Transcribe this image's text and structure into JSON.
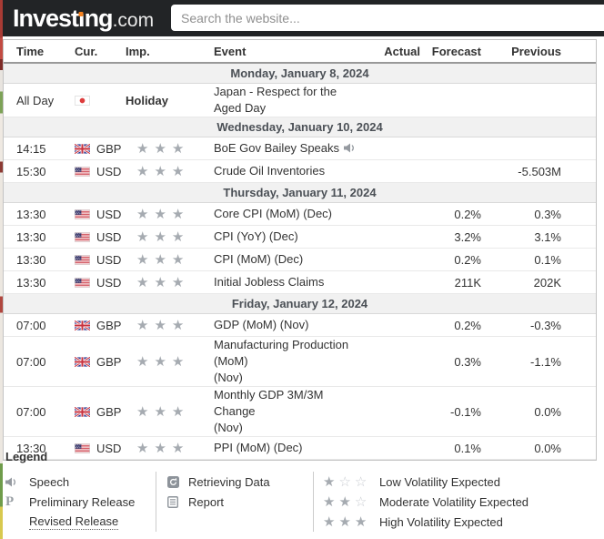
{
  "header": {
    "logo": {
      "before": "Invest",
      "i_char": "ı",
      "after": "ng",
      "suffix": ".com"
    },
    "search_placeholder": "Search the website..."
  },
  "table": {
    "columns": [
      "Time",
      "Cur.",
      "Imp.",
      "Event",
      "Actual",
      "Forecast",
      "Previous"
    ],
    "groups": [
      {
        "date": "Monday, January 8, 2024",
        "rows": [
          {
            "time": "All Day",
            "flag": "JPY",
            "code": "",
            "importance_label": "Holiday",
            "event": "Japan - Respect for the Aged Day",
            "actual": "",
            "forecast": "",
            "previous": ""
          }
        ]
      },
      {
        "date": "Wednesday, January 10, 2024",
        "rows": [
          {
            "time": "14:15",
            "flag": "GBP",
            "code": "GBP",
            "stars": 3,
            "speech": true,
            "event": "BoE Gov Bailey Speaks",
            "actual": "",
            "forecast": "",
            "previous": ""
          },
          {
            "time": "15:30",
            "flag": "USD",
            "code": "USD",
            "stars": 3,
            "event": "Crude Oil Inventories",
            "actual": "",
            "forecast": "",
            "previous": "-5.503M"
          }
        ]
      },
      {
        "date": "Thursday, January 11, 2024",
        "rows": [
          {
            "time": "13:30",
            "flag": "USD",
            "code": "USD",
            "stars": 3,
            "event": "Core CPI (MoM) (Dec)",
            "actual": "",
            "forecast": "0.2%",
            "previous": "0.3%"
          },
          {
            "time": "13:30",
            "flag": "USD",
            "code": "USD",
            "stars": 3,
            "event": "CPI (YoY) (Dec)",
            "actual": "",
            "forecast": "3.2%",
            "previous": "3.1%"
          },
          {
            "time": "13:30",
            "flag": "USD",
            "code": "USD",
            "stars": 3,
            "event": "CPI (MoM) (Dec)",
            "actual": "",
            "forecast": "0.2%",
            "previous": "0.1%"
          },
          {
            "time": "13:30",
            "flag": "USD",
            "code": "USD",
            "stars": 3,
            "event": "Initial Jobless Claims",
            "actual": "",
            "forecast": "211K",
            "previous": "202K"
          }
        ]
      },
      {
        "date": "Friday, January 12, 2024",
        "rows": [
          {
            "time": "07:00",
            "flag": "GBP",
            "code": "GBP",
            "stars": 3,
            "event": "GDP (MoM) (Nov)",
            "actual": "",
            "forecast": "0.2%",
            "previous": "-0.3%"
          },
          {
            "time": "07:00",
            "flag": "GBP",
            "code": "GBP",
            "stars": 3,
            "event": "Manufacturing Production (MoM)",
            "event2": "(Nov)",
            "actual": "",
            "forecast": "0.3%",
            "previous": "-1.1%"
          },
          {
            "time": "07:00",
            "flag": "GBP",
            "code": "GBP",
            "stars": 3,
            "event": "Monthly GDP 3M/3M Change",
            "event2": "(Nov)",
            "actual": "",
            "forecast": "-0.1%",
            "previous": "0.0%"
          },
          {
            "time": "13:30",
            "flag": "USD",
            "code": "USD",
            "stars": 3,
            "event": "PPI (MoM) (Dec)",
            "actual": "",
            "forecast": "0.1%",
            "previous": "0.0%"
          }
        ]
      }
    ]
  },
  "legend": {
    "title": "Legend",
    "col1": [
      {
        "icon": "speaker-icon",
        "label": "Speech"
      },
      {
        "icon": "preliminary-icon",
        "label": "Preliminary Release"
      },
      {
        "icon": "none",
        "label": "Revised Release",
        "underline": true
      }
    ],
    "col2": [
      {
        "icon": "retrieving-data-icon",
        "label": "Retrieving Data"
      },
      {
        "icon": "report-icon",
        "label": "Report"
      }
    ],
    "col3": [
      {
        "filled": 1,
        "total": 3,
        "label": "Low Volatility Expected"
      },
      {
        "filled": 2,
        "total": 3,
        "label": "Moderate Volatility Expected"
      },
      {
        "filled": 3,
        "total": 3,
        "label": "High Volatility Expected"
      }
    ]
  },
  "colors": {
    "header_bg": "#222426",
    "brand_orange": "#f6821f",
    "star_filled": "#a6abb1",
    "star_empty": "#c9cdd2",
    "date_row_bg": "#f1f1f1"
  }
}
